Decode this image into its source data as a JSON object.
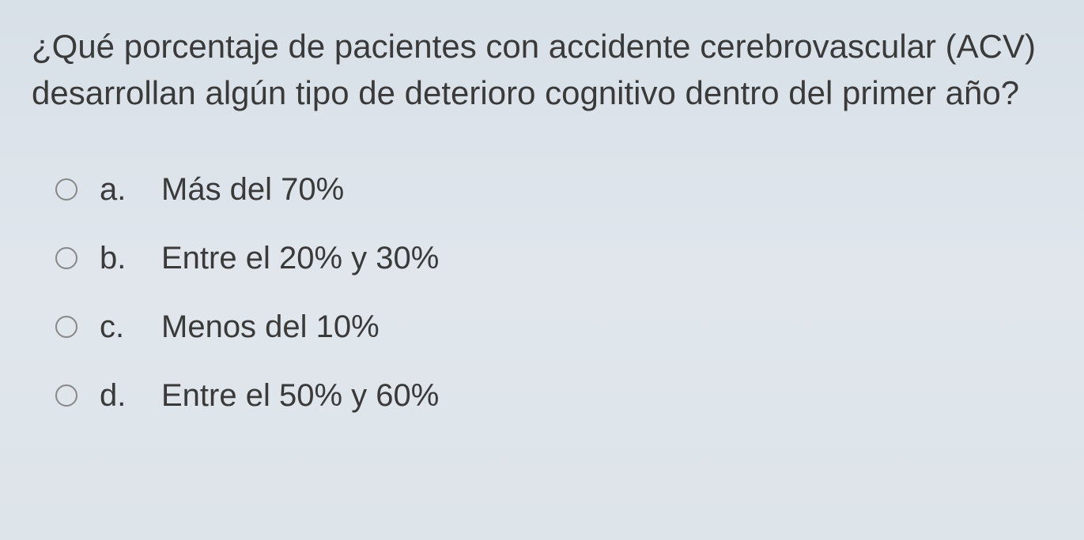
{
  "question": {
    "text": "¿Qué porcentaje de pacientes con accidente cerebrovascular (ACV) desarrollan algún tipo de deterioro cognitivo dentro del primer año?"
  },
  "options": [
    {
      "letter": "a.",
      "text": "Más del 70%"
    },
    {
      "letter": "b.",
      "text": "Entre el 20% y 30%"
    },
    {
      "letter": "c.",
      "text": "Menos del 10%"
    },
    {
      "letter": "d.",
      "text": "Entre el 50% y 60%"
    }
  ],
  "colors": {
    "text": "#3a3a3a",
    "radio_border": "#888888",
    "background_top": "#d8e0e8",
    "background_bottom": "#dde4ea"
  }
}
